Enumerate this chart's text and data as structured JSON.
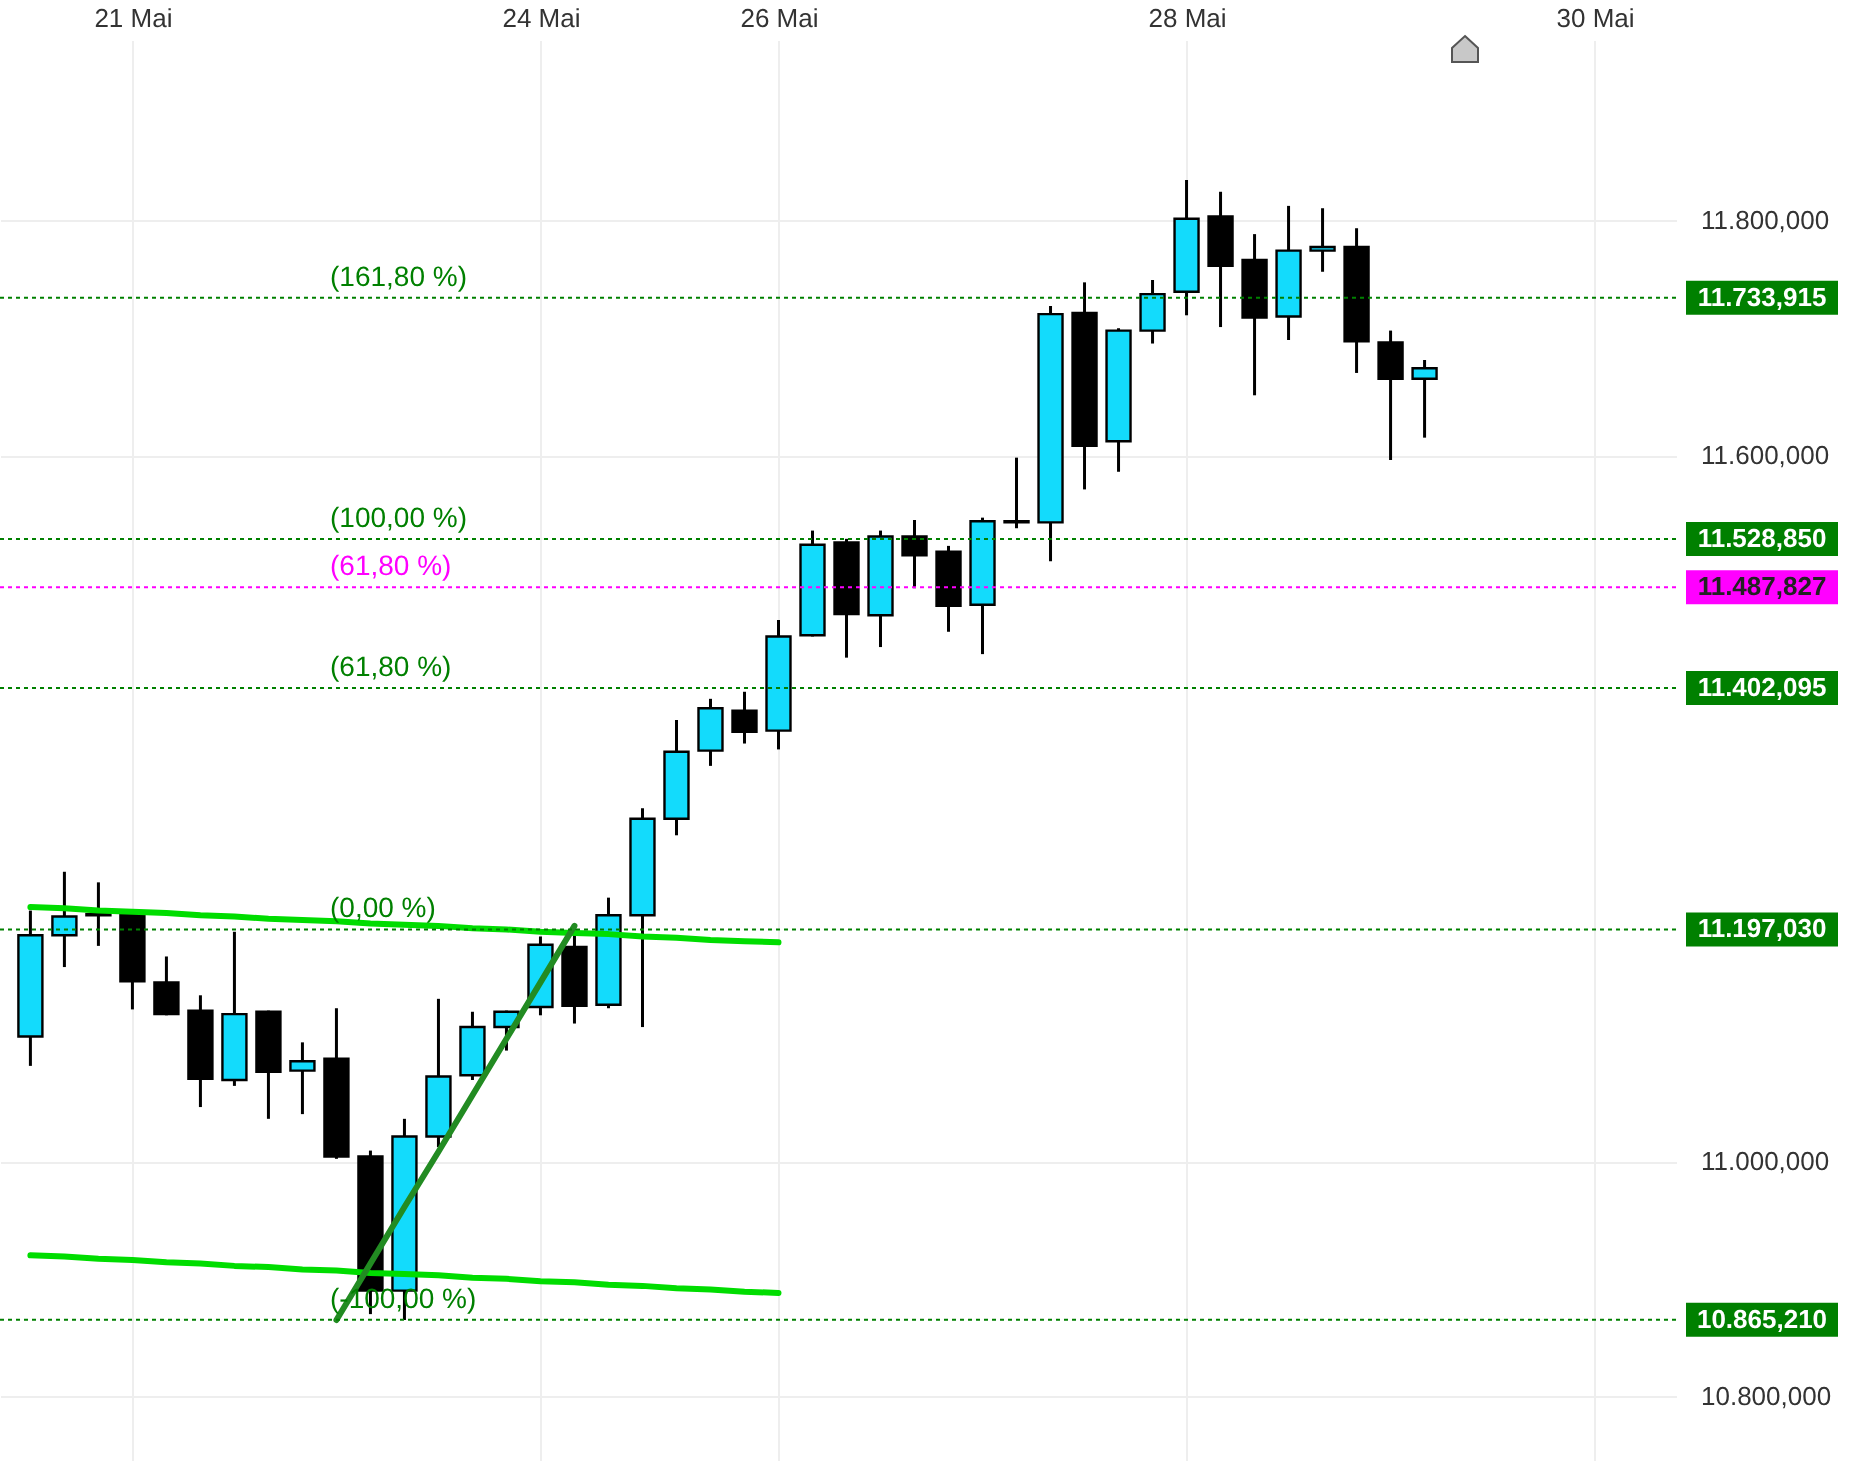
{
  "chart_data": {
    "type": "candlestick",
    "categories": [
      null,
      null,
      null,
      "21 Mai",
      null,
      null,
      null,
      null,
      null,
      null,
      null,
      null,
      null,
      null,
      null,
      "24 Mai",
      null,
      null,
      null,
      null,
      null,
      null,
      "26 Mai",
      null,
      null,
      null,
      null,
      null,
      null,
      null,
      null,
      null,
      null,
      null,
      "28 Mai",
      null,
      null,
      null,
      null,
      null,
      null,
      null,
      null,
      null,
      null,
      null,
      "30 Mai",
      null
    ],
    "ohlc": [
      [
        11106,
        11213,
        11081,
        11192
      ],
      [
        11192,
        11246,
        11165,
        11208
      ],
      [
        11210,
        11237,
        11183,
        11209
      ],
      [
        11209,
        11210,
        11129,
        11153
      ],
      [
        11152,
        11174,
        11124,
        11125
      ],
      [
        11128,
        11141,
        11046,
        11070
      ],
      [
        11069,
        11195,
        11064,
        11125
      ],
      [
        11127,
        11128,
        11036,
        11076
      ],
      [
        11077,
        11101,
        11040,
        11085
      ],
      [
        11087,
        11130,
        11002,
        11004
      ],
      [
        11004,
        11009,
        10870,
        10890
      ],
      [
        10890,
        11036,
        10865,
        11021
      ],
      [
        11021,
        11138,
        11012,
        11072
      ],
      [
        11073,
        11127,
        11069,
        11114
      ],
      [
        11114,
        11128,
        11094,
        11127
      ],
      [
        11131,
        11191,
        11124,
        11184
      ],
      [
        11182,
        11198,
        11117,
        11132
      ],
      [
        11133,
        11224,
        11130,
        11209
      ],
      [
        11209,
        11300,
        11114,
        11291
      ],
      [
        11291,
        11375,
        11277,
        11348
      ],
      [
        11349,
        11393,
        11336,
        11385
      ],
      [
        11383,
        11399,
        11355,
        11365
      ],
      [
        11366,
        11460,
        11350,
        11446
      ],
      [
        11447,
        11536,
        11446,
        11524
      ],
      [
        11526,
        11529,
        11428,
        11465
      ],
      [
        11464,
        11536,
        11437,
        11531
      ],
      [
        11531,
        11545,
        11487,
        11515
      ],
      [
        11518,
        11523,
        11450,
        11472
      ],
      [
        11473,
        11547,
        11431,
        11544
      ],
      [
        11544,
        11598,
        11538,
        11543
      ],
      [
        11543,
        11727,
        11510,
        11720
      ],
      [
        11721,
        11747,
        11571,
        11608
      ],
      [
        11612,
        11708,
        11586,
        11706
      ],
      [
        11706,
        11749,
        11695,
        11737
      ],
      [
        11739,
        11834,
        11719,
        11801
      ],
      [
        11803,
        11824,
        11709,
        11761
      ],
      [
        11766,
        11788,
        11651,
        11717
      ],
      [
        11718,
        11812,
        11698,
        11774
      ],
      [
        11774,
        11810,
        11756,
        11777
      ],
      [
        11777,
        11793,
        11670,
        11697
      ],
      [
        11696,
        11706,
        11596,
        11665
      ],
      [
        11665,
        11681,
        11615,
        11674
      ],
      null,
      null,
      null,
      null,
      null,
      null
    ],
    "colors": [
      "#13dbfc",
      "#13dbfc",
      "#000000",
      "#000000",
      "#000000",
      "#000000",
      "#13dbfc",
      "#000000",
      "#13dbfc",
      "#000000",
      "#000000",
      "#13dbfc",
      "#13dbfc",
      "#13dbfc",
      "#13dbfc",
      "#13dbfc",
      "#000000",
      "#13dbfc",
      "#13dbfc",
      "#13dbfc",
      "#13dbfc",
      "#000000",
      "#13dbfc",
      "#13dbfc",
      "#000000",
      "#13dbfc",
      "#000000",
      "#000000",
      "#13dbfc",
      "#000000",
      "#13dbfc",
      "#000000",
      "#13dbfc",
      "#13dbfc",
      "#13dbfc",
      "#000000",
      "#000000",
      "#13dbfc",
      "#13dbfc",
      "#000000",
      "#000000",
      "#13dbfc",
      null,
      null,
      null,
      null,
      null,
      null
    ],
    "series": [
      {
        "type": "line",
        "color": "#00dd00",
        "values": [
          11216,
          11215,
          11213,
          11212,
          11211,
          11209,
          11208,
          11206,
          11205,
          11204,
          11202,
          11201,
          11200,
          11198,
          11197,
          11195,
          11194,
          11193,
          11191,
          11190,
          11188,
          11187,
          11186,
          null,
          null,
          null,
          null,
          null,
          null,
          null,
          null,
          null,
          null,
          null,
          null,
          null,
          null,
          null,
          null,
          null,
          null,
          null,
          null,
          null,
          null,
          null,
          null,
          null
        ]
      },
      {
        "type": "line",
        "color": "#00dd00",
        "values": [
          10920,
          10919,
          10917,
          10916,
          10914,
          10913,
          10911,
          10910,
          10908,
          10907,
          10905,
          10904,
          10903,
          10901,
          10900,
          10898,
          10897,
          10895,
          10894,
          10892,
          10891,
          10889,
          10888,
          null,
          null,
          null,
          null,
          null,
          null,
          null,
          null,
          null,
          null,
          null,
          null,
          null,
          null,
          null,
          null,
          null,
          null,
          null,
          null,
          null,
          null,
          null,
          null,
          null
        ]
      },
      {
        "type": "line",
        "color": "#228b22",
        "values": [
          null,
          null,
          null,
          null,
          null,
          null,
          null,
          null,
          null,
          10865,
          10913,
          10961,
          11008,
          11056,
          11104,
          11152,
          11200,
          null,
          null,
          null,
          null,
          null,
          null,
          null,
          null,
          null,
          null,
          null,
          null,
          null,
          null,
          null,
          null,
          null,
          null,
          null,
          null,
          null,
          null,
          null,
          null,
          null,
          null,
          null,
          null,
          null,
          null,
          null
        ]
      }
    ],
    "ref_lines": [
      {
        "axis": "y",
        "value": 11733.915,
        "label": "11.733,915",
        "color": "#008000",
        "line_style": "dotted"
      },
      {
        "axis": "y",
        "value": 11528.85,
        "label": "11.528,850",
        "color": "#008000",
        "line_style": "dotted"
      },
      {
        "axis": "y",
        "value": 11487.827,
        "label": "11.487,827",
        "color": "#ff00ff",
        "line_style": "dotted"
      },
      {
        "axis": "y",
        "value": 11402.095,
        "label": "11.402,095",
        "color": "#008000",
        "line_style": "dotted"
      },
      {
        "axis": "y",
        "value": 11197.03,
        "label": "11.197,030",
        "color": "#008000",
        "line_style": "dotted"
      },
      {
        "axis": "y",
        "value": 10865.21,
        "label": "10.865,210",
        "color": "#008000",
        "line_style": "dotted"
      }
    ],
    "annotations": [
      {
        "text": "(161,80 %)",
        "y": 11733.915
      },
      {
        "text": "(100,00 %)",
        "y": 11528.85
      },
      {
        "text": "(61,80 %)",
        "y": 11487.827
      },
      {
        "text": "(61,80 %)",
        "y": 11402.095
      },
      {
        "text": "(0,00 %)",
        "y": 11197.03
      },
      {
        "text": "(-100,00 %)",
        "y": 10865.21
      }
    ],
    "ylim": [
      10746,
      11953
    ],
    "yticks": [
      {
        "value": 10800,
        "label": "10.800,000"
      },
      {
        "value": 11000,
        "label": "11.000,000"
      },
      {
        "value": 11600,
        "label": "11.600,000"
      },
      {
        "value": 11800,
        "label": "11.800,000"
      }
    ],
    "grid": true
  }
}
